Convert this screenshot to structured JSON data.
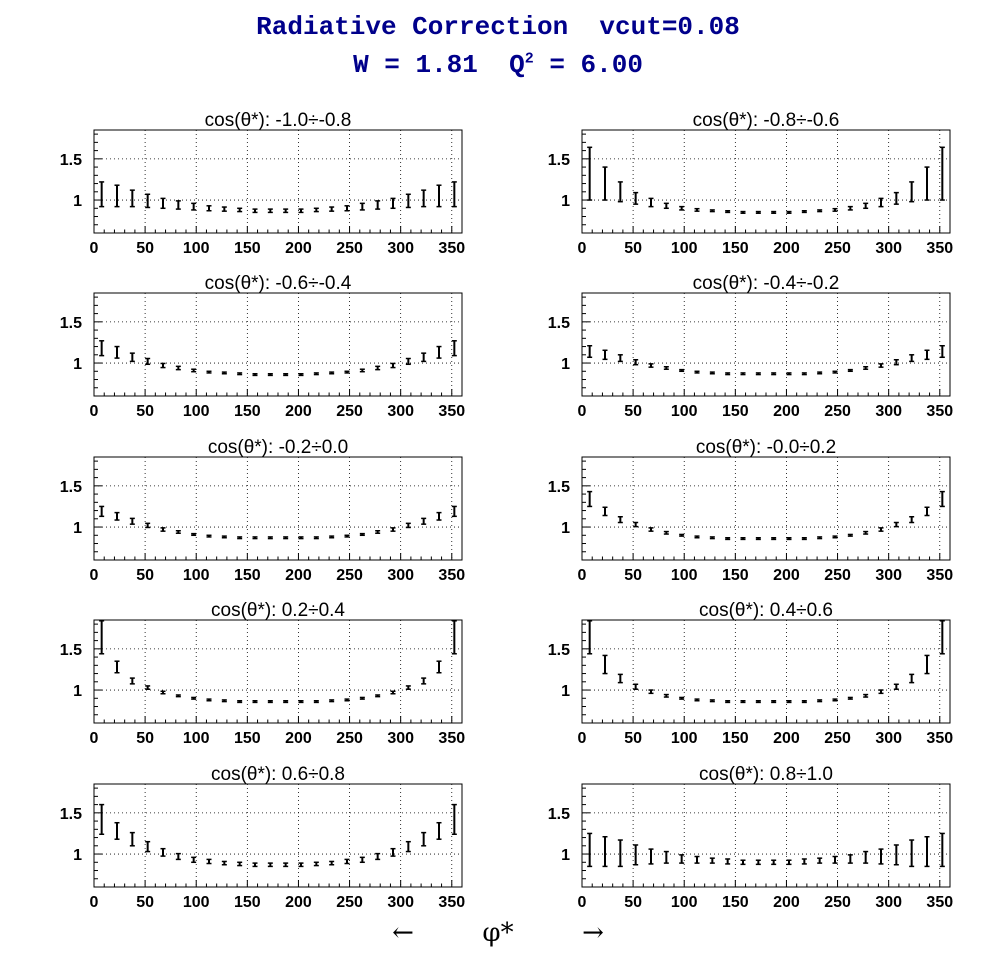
{
  "title_line1": "Radiative Correction  vcut=0.08",
  "title_line2_prefix": "W = 1.81  Q",
  "title_line2_sup": "2",
  "title_line2_suffix": " = 6.00",
  "x_axis": {
    "left_arrow": "←",
    "symbol": "φ*",
    "right_arrow": "→"
  },
  "chart_data": [
    {
      "type": "scatter",
      "title": "cos(θ*): -1.0÷-0.8",
      "xlim": [
        0,
        360
      ],
      "ylim": [
        0.6,
        1.85
      ],
      "xticks": [
        0,
        50,
        100,
        150,
        200,
        250,
        300,
        350
      ],
      "xtick_labels": [
        "0",
        "50",
        "100",
        "150",
        "200",
        "250",
        "300",
        "350"
      ],
      "yticks": [
        1,
        1.5
      ],
      "ytick_labels": [
        "1",
        "1.5"
      ],
      "grid": true,
      "x": [
        7.5,
        22.5,
        37.5,
        52.5,
        67.5,
        82.5,
        97.5,
        112.5,
        127.5,
        142.5,
        157.5,
        172.5,
        187.5,
        202.5,
        217.5,
        232.5,
        247.5,
        262.5,
        277.5,
        292.5,
        307.5,
        322.5,
        337.5,
        352.5
      ],
      "y": [
        1.07,
        1.05,
        1.02,
        0.99,
        0.96,
        0.94,
        0.92,
        0.9,
        0.89,
        0.88,
        0.87,
        0.87,
        0.87,
        0.87,
        0.88,
        0.89,
        0.9,
        0.92,
        0.94,
        0.96,
        0.99,
        1.02,
        1.05,
        1.07
      ],
      "yerr": [
        0.15,
        0.13,
        0.1,
        0.08,
        0.06,
        0.05,
        0.04,
        0.03,
        0.025,
        0.02,
        0.02,
        0.02,
        0.02,
        0.02,
        0.02,
        0.025,
        0.03,
        0.04,
        0.05,
        0.06,
        0.08,
        0.1,
        0.13,
        0.15
      ]
    },
    {
      "type": "scatter",
      "title": "cos(θ*): -0.8÷-0.6",
      "xlim": [
        0,
        360
      ],
      "ylim": [
        0.6,
        1.85
      ],
      "xticks": [
        0,
        50,
        100,
        150,
        200,
        250,
        300,
        350
      ],
      "xtick_labels": [
        "0",
        "50",
        "100",
        "150",
        "200",
        "250",
        "300",
        "350"
      ],
      "yticks": [
        1,
        1.5
      ],
      "ytick_labels": [
        "1",
        "1.5"
      ],
      "grid": true,
      "x": [
        7.5,
        22.5,
        37.5,
        52.5,
        67.5,
        82.5,
        97.5,
        112.5,
        127.5,
        142.5,
        157.5,
        172.5,
        187.5,
        202.5,
        217.5,
        232.5,
        247.5,
        262.5,
        277.5,
        292.5,
        307.5,
        322.5,
        337.5,
        352.5
      ],
      "y": [
        1.32,
        1.2,
        1.1,
        1.02,
        0.97,
        0.93,
        0.9,
        0.88,
        0.87,
        0.86,
        0.85,
        0.85,
        0.85,
        0.85,
        0.86,
        0.87,
        0.88,
        0.9,
        0.93,
        0.97,
        1.02,
        1.1,
        1.2,
        1.32
      ],
      "yerr": [
        0.32,
        0.2,
        0.12,
        0.07,
        0.05,
        0.03,
        0.02,
        0.015,
        0.01,
        0.01,
        0.01,
        0.01,
        0.01,
        0.01,
        0.01,
        0.01,
        0.015,
        0.02,
        0.03,
        0.05,
        0.07,
        0.12,
        0.2,
        0.32
      ]
    },
    {
      "type": "scatter",
      "title": "cos(θ*): -0.6÷-0.4",
      "xlim": [
        0,
        360
      ],
      "ylim": [
        0.6,
        1.85
      ],
      "xticks": [
        0,
        50,
        100,
        150,
        200,
        250,
        300,
        350
      ],
      "xtick_labels": [
        "0",
        "50",
        "100",
        "150",
        "200",
        "250",
        "300",
        "350"
      ],
      "yticks": [
        1,
        1.5
      ],
      "ytick_labels": [
        "1",
        "1.5"
      ],
      "grid": true,
      "x": [
        7.5,
        22.5,
        37.5,
        52.5,
        67.5,
        82.5,
        97.5,
        112.5,
        127.5,
        142.5,
        157.5,
        172.5,
        187.5,
        202.5,
        217.5,
        232.5,
        247.5,
        262.5,
        277.5,
        292.5,
        307.5,
        322.5,
        337.5,
        352.5
      ],
      "y": [
        1.18,
        1.13,
        1.07,
        1.02,
        0.97,
        0.94,
        0.91,
        0.89,
        0.88,
        0.87,
        0.86,
        0.86,
        0.86,
        0.86,
        0.87,
        0.88,
        0.89,
        0.91,
        0.94,
        0.97,
        1.02,
        1.07,
        1.13,
        1.18
      ],
      "yerr": [
        0.09,
        0.07,
        0.05,
        0.035,
        0.025,
        0.02,
        0.015,
        0.01,
        0.01,
        0.01,
        0.01,
        0.01,
        0.01,
        0.01,
        0.01,
        0.01,
        0.01,
        0.015,
        0.02,
        0.025,
        0.035,
        0.05,
        0.07,
        0.09
      ]
    },
    {
      "type": "scatter",
      "title": "cos(θ*): -0.4÷-0.2",
      "xlim": [
        0,
        360
      ],
      "ylim": [
        0.6,
        1.85
      ],
      "xticks": [
        0,
        50,
        100,
        150,
        200,
        250,
        300,
        350
      ],
      "xtick_labels": [
        "0",
        "50",
        "100",
        "150",
        "200",
        "250",
        "300",
        "350"
      ],
      "yticks": [
        1,
        1.5
      ],
      "ytick_labels": [
        "1",
        "1.5"
      ],
      "grid": true,
      "x": [
        7.5,
        22.5,
        37.5,
        52.5,
        67.5,
        82.5,
        97.5,
        112.5,
        127.5,
        142.5,
        157.5,
        172.5,
        187.5,
        202.5,
        217.5,
        232.5,
        247.5,
        262.5,
        277.5,
        292.5,
        307.5,
        322.5,
        337.5,
        352.5
      ],
      "y": [
        1.14,
        1.1,
        1.06,
        1.01,
        0.97,
        0.94,
        0.91,
        0.89,
        0.88,
        0.87,
        0.87,
        0.87,
        0.87,
        0.87,
        0.87,
        0.88,
        0.89,
        0.91,
        0.94,
        0.97,
        1.01,
        1.06,
        1.1,
        1.14
      ],
      "yerr": [
        0.07,
        0.055,
        0.04,
        0.03,
        0.02,
        0.015,
        0.01,
        0.01,
        0.01,
        0.01,
        0.01,
        0.01,
        0.01,
        0.01,
        0.01,
        0.01,
        0.01,
        0.01,
        0.015,
        0.02,
        0.03,
        0.04,
        0.055,
        0.07
      ]
    },
    {
      "type": "scatter",
      "title": "cos(θ*): -0.2÷0.0",
      "xlim": [
        0,
        360
      ],
      "ylim": [
        0.6,
        1.85
      ],
      "xticks": [
        0,
        50,
        100,
        150,
        200,
        250,
        300,
        350
      ],
      "xtick_labels": [
        "0",
        "50",
        "100",
        "150",
        "200",
        "250",
        "300",
        "350"
      ],
      "yticks": [
        1,
        1.5
      ],
      "ytick_labels": [
        "1",
        "1.5"
      ],
      "grid": true,
      "x": [
        7.5,
        22.5,
        37.5,
        52.5,
        67.5,
        82.5,
        97.5,
        112.5,
        127.5,
        142.5,
        157.5,
        172.5,
        187.5,
        202.5,
        217.5,
        232.5,
        247.5,
        262.5,
        277.5,
        292.5,
        307.5,
        322.5,
        337.5,
        352.5
      ],
      "y": [
        1.19,
        1.13,
        1.07,
        1.02,
        0.97,
        0.94,
        0.91,
        0.89,
        0.88,
        0.87,
        0.87,
        0.87,
        0.87,
        0.87,
        0.87,
        0.88,
        0.89,
        0.91,
        0.94,
        0.97,
        1.02,
        1.07,
        1.13,
        1.19
      ],
      "yerr": [
        0.06,
        0.045,
        0.035,
        0.025,
        0.02,
        0.015,
        0.01,
        0.01,
        0.01,
        0.01,
        0.01,
        0.01,
        0.01,
        0.01,
        0.01,
        0.01,
        0.01,
        0.01,
        0.015,
        0.02,
        0.025,
        0.035,
        0.045,
        0.06
      ]
    },
    {
      "type": "scatter",
      "title": "cos(θ*): -0.0÷0.2",
      "xlim": [
        0,
        360
      ],
      "ylim": [
        0.6,
        1.85
      ],
      "xticks": [
        0,
        50,
        100,
        150,
        200,
        250,
        300,
        350
      ],
      "xtick_labels": [
        "0",
        "50",
        "100",
        "150",
        "200",
        "250",
        "300",
        "350"
      ],
      "yticks": [
        1,
        1.5
      ],
      "ytick_labels": [
        "1",
        "1.5"
      ],
      "grid": true,
      "x": [
        7.5,
        22.5,
        37.5,
        52.5,
        67.5,
        82.5,
        97.5,
        112.5,
        127.5,
        142.5,
        157.5,
        172.5,
        187.5,
        202.5,
        217.5,
        232.5,
        247.5,
        262.5,
        277.5,
        292.5,
        307.5,
        322.5,
        337.5,
        352.5
      ],
      "y": [
        1.34,
        1.19,
        1.09,
        1.03,
        0.97,
        0.93,
        0.9,
        0.88,
        0.87,
        0.86,
        0.86,
        0.86,
        0.86,
        0.86,
        0.86,
        0.87,
        0.88,
        0.9,
        0.93,
        0.97,
        1.03,
        1.09,
        1.19,
        1.34
      ],
      "yerr": [
        0.09,
        0.05,
        0.035,
        0.025,
        0.02,
        0.015,
        0.01,
        0.01,
        0.01,
        0.01,
        0.01,
        0.01,
        0.01,
        0.01,
        0.01,
        0.01,
        0.01,
        0.01,
        0.015,
        0.02,
        0.025,
        0.035,
        0.05,
        0.09
      ]
    },
    {
      "type": "scatter",
      "title": "cos(θ*): 0.2÷0.4",
      "xlim": [
        0,
        360
      ],
      "ylim": [
        0.6,
        1.85
      ],
      "xticks": [
        0,
        50,
        100,
        150,
        200,
        250,
        300,
        350
      ],
      "xtick_labels": [
        "0",
        "50",
        "100",
        "150",
        "200",
        "250",
        "300",
        "350"
      ],
      "yticks": [
        1,
        1.5
      ],
      "ytick_labels": [
        "1",
        "1.5"
      ],
      "grid": true,
      "x": [
        7.5,
        22.5,
        37.5,
        52.5,
        67.5,
        82.5,
        97.5,
        112.5,
        127.5,
        142.5,
        157.5,
        172.5,
        187.5,
        202.5,
        217.5,
        232.5,
        247.5,
        262.5,
        277.5,
        292.5,
        307.5,
        322.5,
        337.5,
        352.5
      ],
      "y": [
        1.64,
        1.28,
        1.11,
        1.03,
        0.97,
        0.93,
        0.9,
        0.88,
        0.87,
        0.86,
        0.86,
        0.86,
        0.86,
        0.86,
        0.86,
        0.87,
        0.88,
        0.9,
        0.93,
        0.97,
        1.03,
        1.11,
        1.28,
        1.64
      ],
      "yerr": [
        0.2,
        0.07,
        0.035,
        0.02,
        0.015,
        0.01,
        0.01,
        0.01,
        0.01,
        0.01,
        0.01,
        0.01,
        0.01,
        0.01,
        0.01,
        0.01,
        0.01,
        0.01,
        0.01,
        0.015,
        0.02,
        0.035,
        0.07,
        0.2
      ]
    },
    {
      "type": "scatter",
      "title": "cos(θ*): 0.4÷0.6",
      "xlim": [
        0,
        360
      ],
      "ylim": [
        0.6,
        1.85
      ],
      "xticks": [
        0,
        50,
        100,
        150,
        200,
        250,
        300,
        350
      ],
      "xtick_labels": [
        "0",
        "50",
        "100",
        "150",
        "200",
        "250",
        "300",
        "350"
      ],
      "yticks": [
        1,
        1.5
      ],
      "ytick_labels": [
        "1",
        "1.5"
      ],
      "grid": true,
      "x": [
        7.5,
        22.5,
        37.5,
        52.5,
        67.5,
        82.5,
        97.5,
        112.5,
        127.5,
        142.5,
        157.5,
        172.5,
        187.5,
        202.5,
        217.5,
        232.5,
        247.5,
        262.5,
        277.5,
        292.5,
        307.5,
        322.5,
        337.5,
        352.5
      ],
      "y": [
        1.64,
        1.31,
        1.14,
        1.04,
        0.98,
        0.93,
        0.9,
        0.88,
        0.87,
        0.86,
        0.86,
        0.86,
        0.86,
        0.86,
        0.86,
        0.87,
        0.88,
        0.9,
        0.93,
        0.98,
        1.04,
        1.14,
        1.31,
        1.64
      ],
      "yerr": [
        0.2,
        0.11,
        0.05,
        0.03,
        0.02,
        0.015,
        0.01,
        0.01,
        0.01,
        0.01,
        0.01,
        0.01,
        0.01,
        0.01,
        0.01,
        0.01,
        0.01,
        0.01,
        0.015,
        0.02,
        0.03,
        0.05,
        0.11,
        0.2
      ]
    },
    {
      "type": "scatter",
      "title": "cos(θ*): 0.6÷0.8",
      "xlim": [
        0,
        360
      ],
      "ylim": [
        0.6,
        1.85
      ],
      "xticks": [
        0,
        50,
        100,
        150,
        200,
        250,
        300,
        350
      ],
      "xtick_labels": [
        "0",
        "50",
        "100",
        "150",
        "200",
        "250",
        "300",
        "350"
      ],
      "yticks": [
        1,
        1.5
      ],
      "ytick_labels": [
        "1",
        "1.5"
      ],
      "grid": true,
      "x": [
        7.5,
        22.5,
        37.5,
        52.5,
        67.5,
        82.5,
        97.5,
        112.5,
        127.5,
        142.5,
        157.5,
        172.5,
        187.5,
        202.5,
        217.5,
        232.5,
        247.5,
        262.5,
        277.5,
        292.5,
        307.5,
        322.5,
        337.5,
        352.5
      ],
      "y": [
        1.42,
        1.28,
        1.18,
        1.09,
        1.02,
        0.97,
        0.93,
        0.91,
        0.89,
        0.88,
        0.87,
        0.87,
        0.87,
        0.87,
        0.88,
        0.89,
        0.91,
        0.93,
        0.97,
        1.02,
        1.09,
        1.18,
        1.28,
        1.42
      ],
      "yerr": [
        0.18,
        0.1,
        0.08,
        0.06,
        0.045,
        0.035,
        0.03,
        0.025,
        0.02,
        0.02,
        0.02,
        0.02,
        0.02,
        0.02,
        0.02,
        0.02,
        0.025,
        0.03,
        0.035,
        0.045,
        0.06,
        0.08,
        0.1,
        0.18
      ]
    },
    {
      "type": "scatter",
      "title": "cos(θ*): 0.8÷1.0",
      "xlim": [
        0,
        360
      ],
      "ylim": [
        0.6,
        1.85
      ],
      "xticks": [
        0,
        50,
        100,
        150,
        200,
        250,
        300,
        350
      ],
      "xtick_labels": [
        "0",
        "50",
        "100",
        "150",
        "200",
        "250",
        "300",
        "350"
      ],
      "yticks": [
        1,
        1.5
      ],
      "ytick_labels": [
        "1",
        "1.5"
      ],
      "grid": true,
      "x": [
        7.5,
        22.5,
        37.5,
        52.5,
        67.5,
        82.5,
        97.5,
        112.5,
        127.5,
        142.5,
        157.5,
        172.5,
        187.5,
        202.5,
        217.5,
        232.5,
        247.5,
        262.5,
        277.5,
        292.5,
        307.5,
        322.5,
        337.5,
        352.5
      ],
      "y": [
        1.05,
        1.03,
        1.01,
        0.99,
        0.97,
        0.96,
        0.94,
        0.93,
        0.92,
        0.91,
        0.9,
        0.9,
        0.9,
        0.9,
        0.91,
        0.92,
        0.93,
        0.94,
        0.96,
        0.97,
        0.99,
        1.01,
        1.03,
        1.05
      ],
      "yerr": [
        0.2,
        0.18,
        0.16,
        0.12,
        0.09,
        0.07,
        0.05,
        0.04,
        0.03,
        0.03,
        0.025,
        0.025,
        0.025,
        0.025,
        0.03,
        0.03,
        0.04,
        0.05,
        0.07,
        0.09,
        0.12,
        0.16,
        0.18,
        0.2
      ]
    }
  ]
}
